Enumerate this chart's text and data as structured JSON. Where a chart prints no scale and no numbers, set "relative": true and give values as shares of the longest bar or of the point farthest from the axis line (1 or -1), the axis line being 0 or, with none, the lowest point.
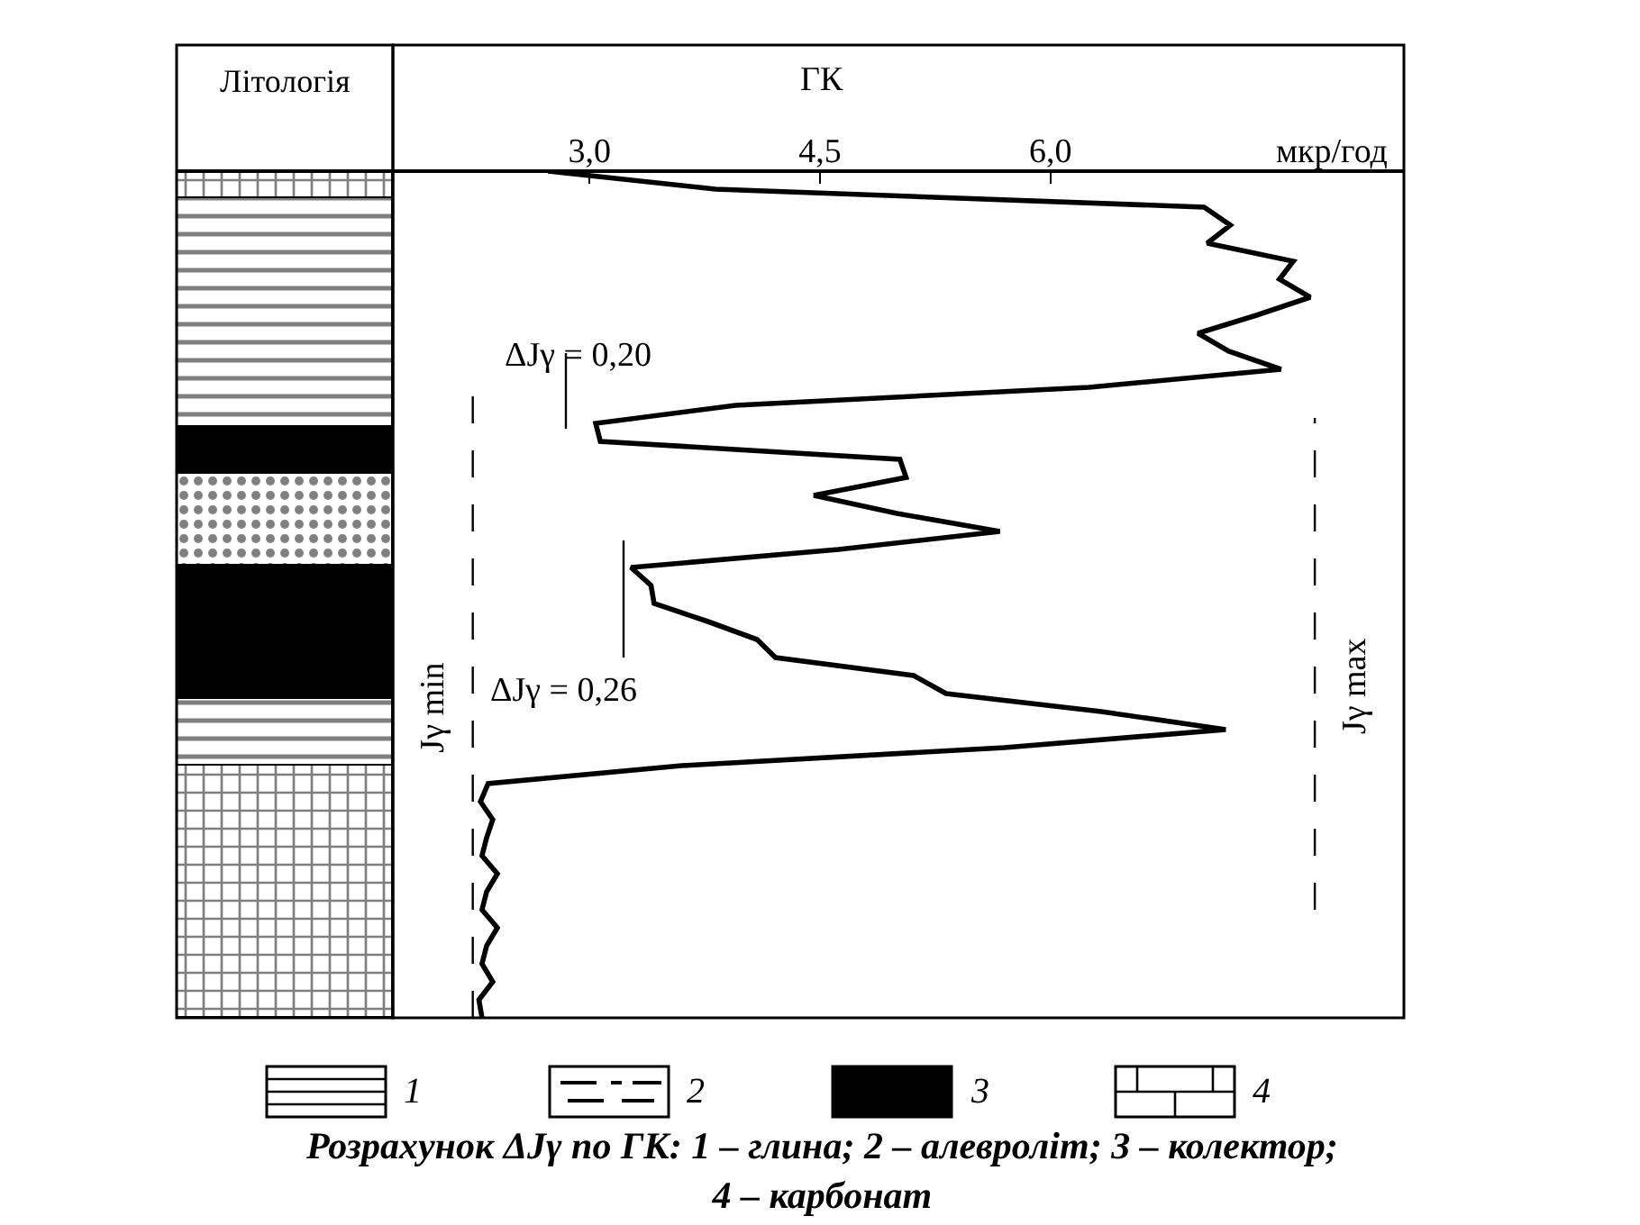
{
  "chart_data": [
    {
      "type": "bar",
      "title": "Літологія",
      "stacked": true,
      "relative": true,
      "categories": [
        null
      ],
      "tick_labels": false,
      "annotations": [
        "1",
        "2",
        "3",
        "4"
      ],
      "series": [
        {
          "color": "#000000",
          "values": [
            0.298
          ]
        },
        {
          "color": "#000000",
          "values": [
            0.079
          ]
        },
        {
          "color": "#000000",
          "values": [
            0.157
          ]
        },
        {
          "color": "#000000",
          "values": [
            0.109
          ]
        },
        {
          "color": "#000000",
          "values": [
            0.055
          ]
        },
        {
          "color": "#000000",
          "values": [
            0.27
          ]
        },
        {
          "color": "#000000",
          "values": [
            0.032
          ]
        }
      ]
    },
    {
      "type": "line",
      "orientation": "horizontal",
      "xlabel": "ГК",
      "tick_labels": "x",
      "xlim": [
        1.72,
        8.3
      ],
      "xticks": [
        {
          "value": 3.0,
          "label": "3,0"
        },
        {
          "value": 4.5,
          "label": "4,5"
        },
        {
          "value": 6.0,
          "label": "6,0"
        }
      ],
      "categories": [
        null,
        null,
        null,
        null,
        null,
        null,
        null,
        null,
        null,
        null,
        null,
        null,
        null,
        null,
        null,
        null,
        null,
        null,
        null,
        null,
        null,
        null,
        null,
        null,
        null,
        null,
        null,
        null,
        null,
        null,
        null,
        null,
        null,
        null,
        null,
        null,
        null,
        null,
        null,
        null,
        null,
        null,
        null,
        null,
        null,
        null,
        null,
        null
      ],
      "series": [
        {
          "color": "#000000",
          "values": [
            2.73,
            3.82,
            7.0,
            7.17,
            7.02,
            7.58,
            7.49,
            7.69,
            7.34,
            6.96,
            7.16,
            7.5,
            6.25,
            3.95,
            3.04,
            3.07,
            5.02,
            5.06,
            4.46,
            5.0,
            5.67,
            4.62,
            3.27,
            3.4,
            3.42,
            3.77,
            4.09,
            4.21,
            5.11,
            5.32,
            6.33,
            7.14,
            5.7,
            3.6,
            2.34,
            2.29,
            2.37,
            2.33,
            2.3,
            2.4,
            2.33,
            2.3,
            2.4,
            2.33,
            2.3,
            2.37,
            2.28,
            2.3
          ]
        }
      ],
      "ref_lines": [
        {
          "axis": "x",
          "value": 2.24,
          "label": "Jγ min",
          "line_style": "dashed",
          "color": "#000000"
        },
        {
          "axis": "x",
          "value": 7.72,
          "label": "Jγ max",
          "line_style": "dashed",
          "color": "#000000"
        }
      ],
      "annotations": [
        "ΔJγ = 0,20",
        "ΔJγ = 0,26",
        "мкр/год",
        "Розрахунок ΔJγ по ГК: 1 – глина; 2 – алевроліт; 3 – колектор; 4 – карбонат"
      ]
    }
  ]
}
